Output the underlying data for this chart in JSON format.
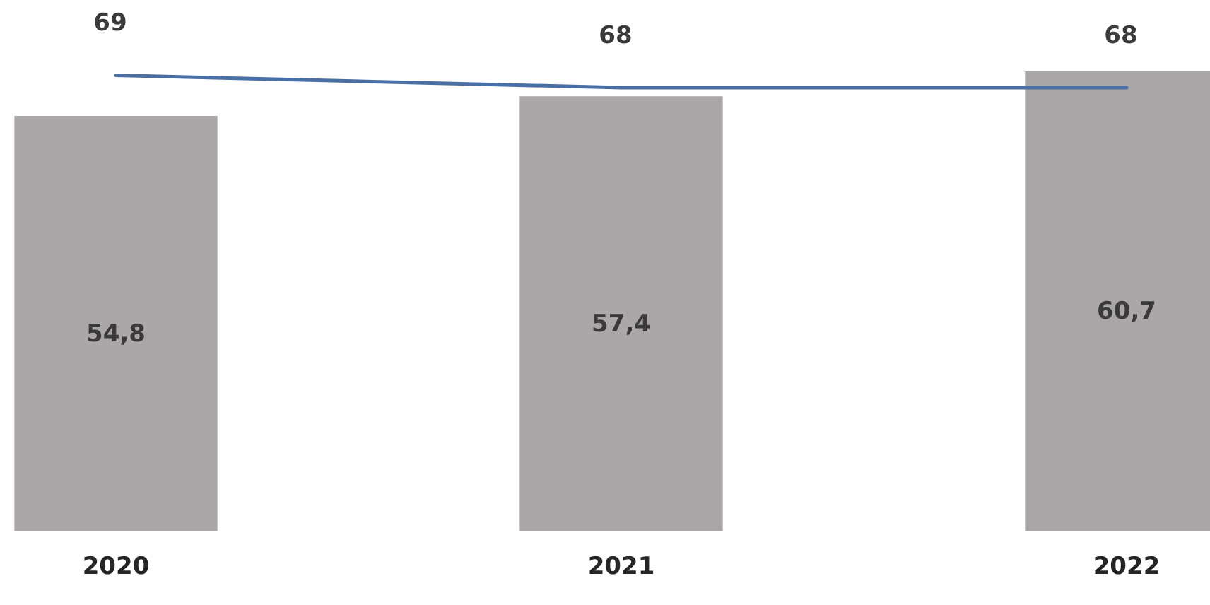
{
  "chart_data": {
    "type": "bar",
    "categories": [
      "2020",
      "2021",
      "2022"
    ],
    "series": [
      {
        "color": "#aba6a7",
        "values": [
          54.8,
          57.4,
          60.7
        ],
        "value_labels": [
          "54,8",
          "57,4",
          "60,7"
        ]
      },
      {
        "type": "line",
        "axis": "y2",
        "color": "#4a6fa5",
        "values": [
          69,
          68,
          68
        ],
        "value_labels": [
          "69",
          "68",
          "68"
        ]
      }
    ],
    "ylim": [
      0,
      70
    ],
    "y2lim": [
      32,
      75
    ],
    "tick_labels": "x",
    "marker": "none",
    "legend": false,
    "grid": false
  }
}
